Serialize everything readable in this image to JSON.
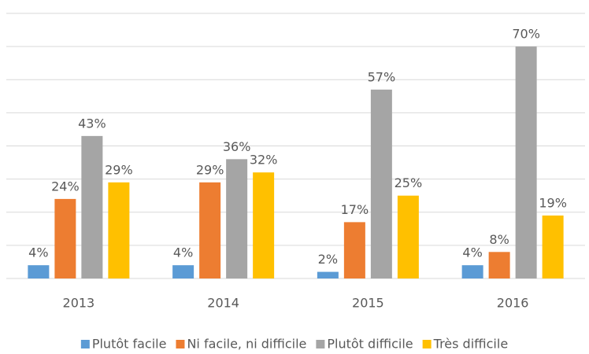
{
  "chart_data": {
    "type": "bar",
    "categories": [
      "2013",
      "2014",
      "2015",
      "2016"
    ],
    "series": [
      {
        "name": "Plutôt facile",
        "color": "#5b9bd5",
        "values": [
          4,
          4,
          2,
          4
        ],
        "value_labels": [
          "4%",
          "4%",
          "2%",
          "4%"
        ]
      },
      {
        "name": "Ni facile, ni difficile",
        "color": "#ed7d31",
        "values": [
          24,
          29,
          17,
          8
        ],
        "value_labels": [
          "24%",
          "29%",
          "17%",
          "8%"
        ]
      },
      {
        "name": "Plutôt difficile",
        "color": "#a5a5a5",
        "values": [
          43,
          36,
          57,
          70
        ],
        "value_labels": [
          "43%",
          "36%",
          "57%",
          "70%"
        ]
      },
      {
        "name": "Très difficile",
        "color": "#ffc000",
        "values": [
          29,
          32,
          25,
          19
        ],
        "value_labels": [
          "29%",
          "32%",
          "25%",
          "19%"
        ]
      }
    ],
    "ylim": [
      0,
      80
    ],
    "yticks": [
      0,
      10,
      20,
      30,
      40,
      50,
      60,
      70,
      80
    ],
    "grid": true,
    "legend": "bottom"
  }
}
